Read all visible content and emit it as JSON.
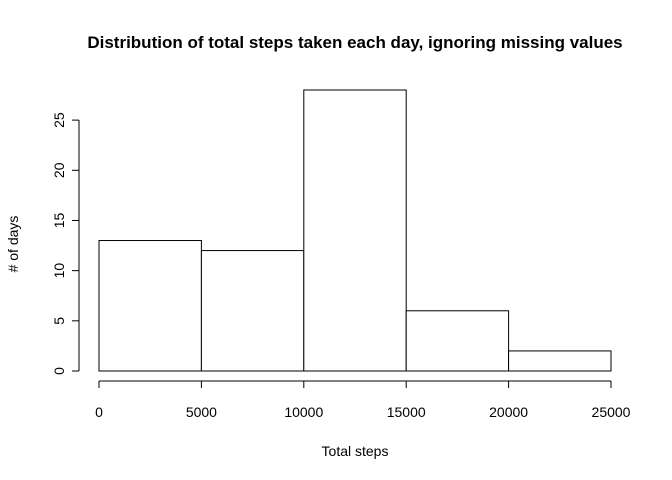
{
  "chart_data": {
    "type": "bar",
    "title": "Distribution of total steps taken each day, ignoring missing values",
    "xlabel": "Total steps",
    "ylabel": "# of days",
    "bins": [
      [
        0,
        5000
      ],
      [
        5000,
        10000
      ],
      [
        10000,
        15000
      ],
      [
        15000,
        20000
      ],
      [
        20000,
        25000
      ]
    ],
    "values": [
      13,
      12,
      28,
      6,
      2
    ],
    "xlim": [
      0,
      25000
    ],
    "ylim": [
      0,
      28
    ],
    "x_ticks": [
      0,
      5000,
      10000,
      15000,
      20000,
      25000
    ],
    "y_ticks": [
      0,
      5,
      10,
      15,
      20,
      25
    ],
    "x_tick_labels": [
      "0",
      "5000",
      "10000",
      "15000",
      "20000",
      "25000"
    ],
    "y_tick_labels": [
      "0",
      "5",
      "10",
      "15",
      "20",
      "25"
    ],
    "bar_fill": "#ffffff",
    "bar_stroke": "#000000",
    "grid": false,
    "legend": "none"
  }
}
